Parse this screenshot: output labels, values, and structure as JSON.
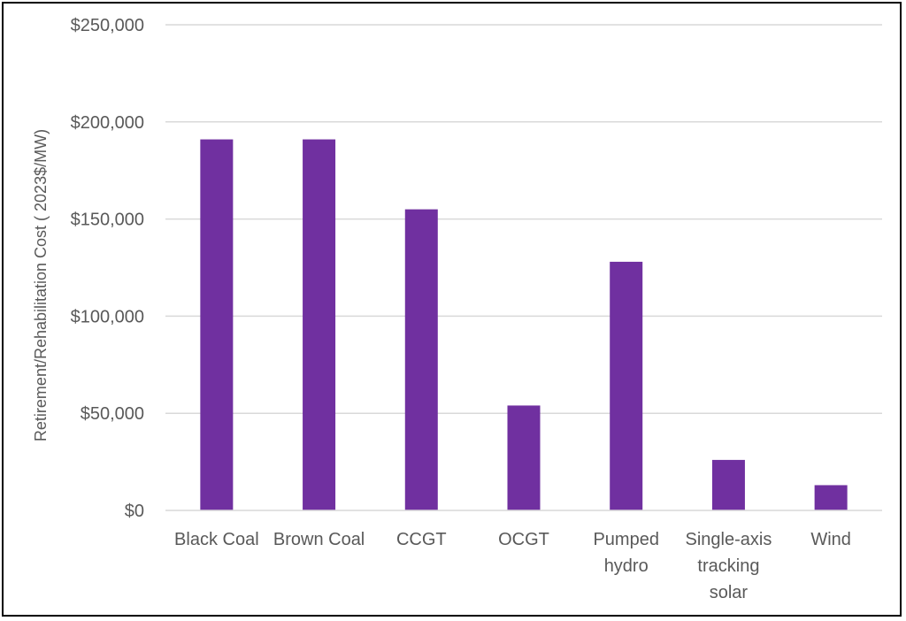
{
  "chart_data": {
    "type": "bar",
    "title": "",
    "xlabel": "",
    "ylabel": "Retirement/Rehabilitation Cost ( 2023$/MW)",
    "categories": [
      "Black Coal",
      "Brown Coal",
      "CCGT",
      "OCGT",
      "Pumped hydro",
      "Single-axis tracking solar",
      "Wind"
    ],
    "category_lines": [
      [
        "Black Coal"
      ],
      [
        "Brown Coal"
      ],
      [
        "CCGT"
      ],
      [
        "OCGT"
      ],
      [
        "Pumped",
        "hydro"
      ],
      [
        "Single-axis",
        "tracking",
        "solar"
      ],
      [
        "Wind"
      ]
    ],
    "values": [
      191000,
      191000,
      155000,
      54000,
      128000,
      26000,
      13000
    ],
    "ylim": [
      0,
      250000
    ],
    "y_ticks": [
      0,
      50000,
      100000,
      150000,
      200000,
      250000
    ],
    "y_tick_labels": [
      "$0",
      "$50,000",
      "$100,000",
      "$150,000",
      "$200,000",
      "$250,000"
    ],
    "grid": true,
    "legend": "none",
    "colors": {
      "bar": "#7030A0",
      "grid": "#D9D9D9",
      "text": "#595959",
      "border": "#000000"
    }
  }
}
